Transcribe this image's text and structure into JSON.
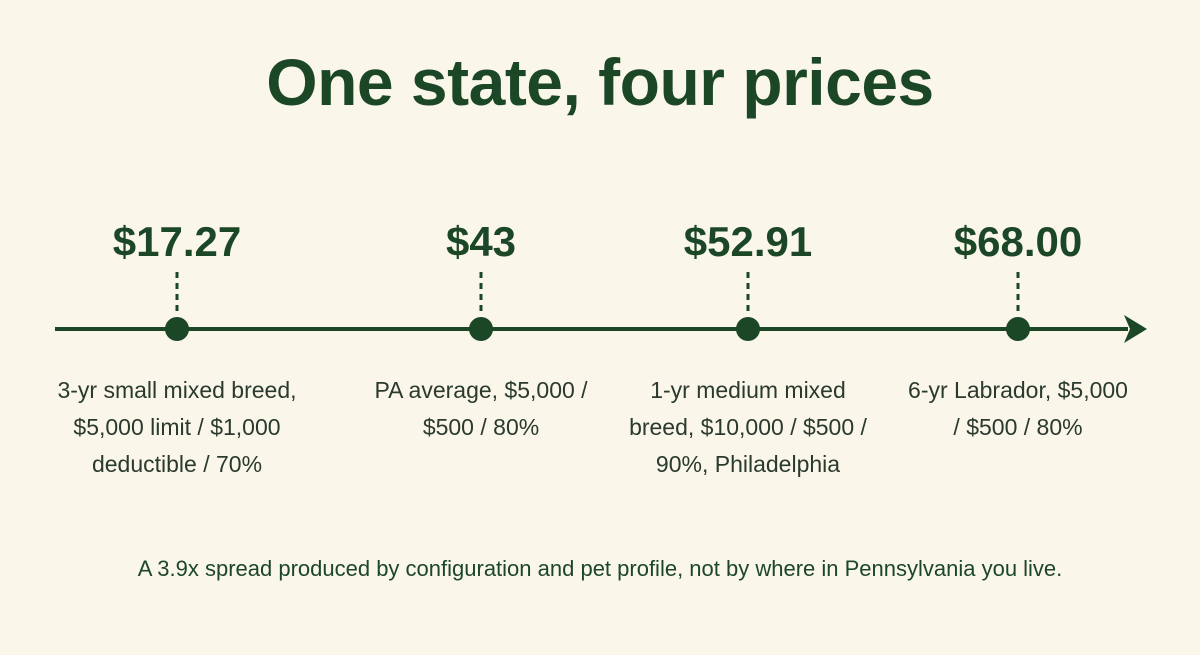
{
  "title": "One state, four prices",
  "points": [
    {
      "price": "$17.27",
      "label": "3-yr small mixed breed, $5,000 limit / $1,000 deductible / 70%"
    },
    {
      "price": "$43",
      "label": "PA average, $5,000 / $500 / 80%"
    },
    {
      "price": "$52.91",
      "label": "1-yr medium mixed breed, $10,000 / $500 / 90%, Philadelphia"
    },
    {
      "price": "$68.00",
      "label": "6-yr Labrador, $5,000 / $500 / 80%"
    }
  ],
  "caption": "A 3.9x spread produced by configuration and pet profile, not by where in Pennsylvania you live.",
  "colors": {
    "background": "#faf6ea",
    "accent": "#1c4727"
  }
}
